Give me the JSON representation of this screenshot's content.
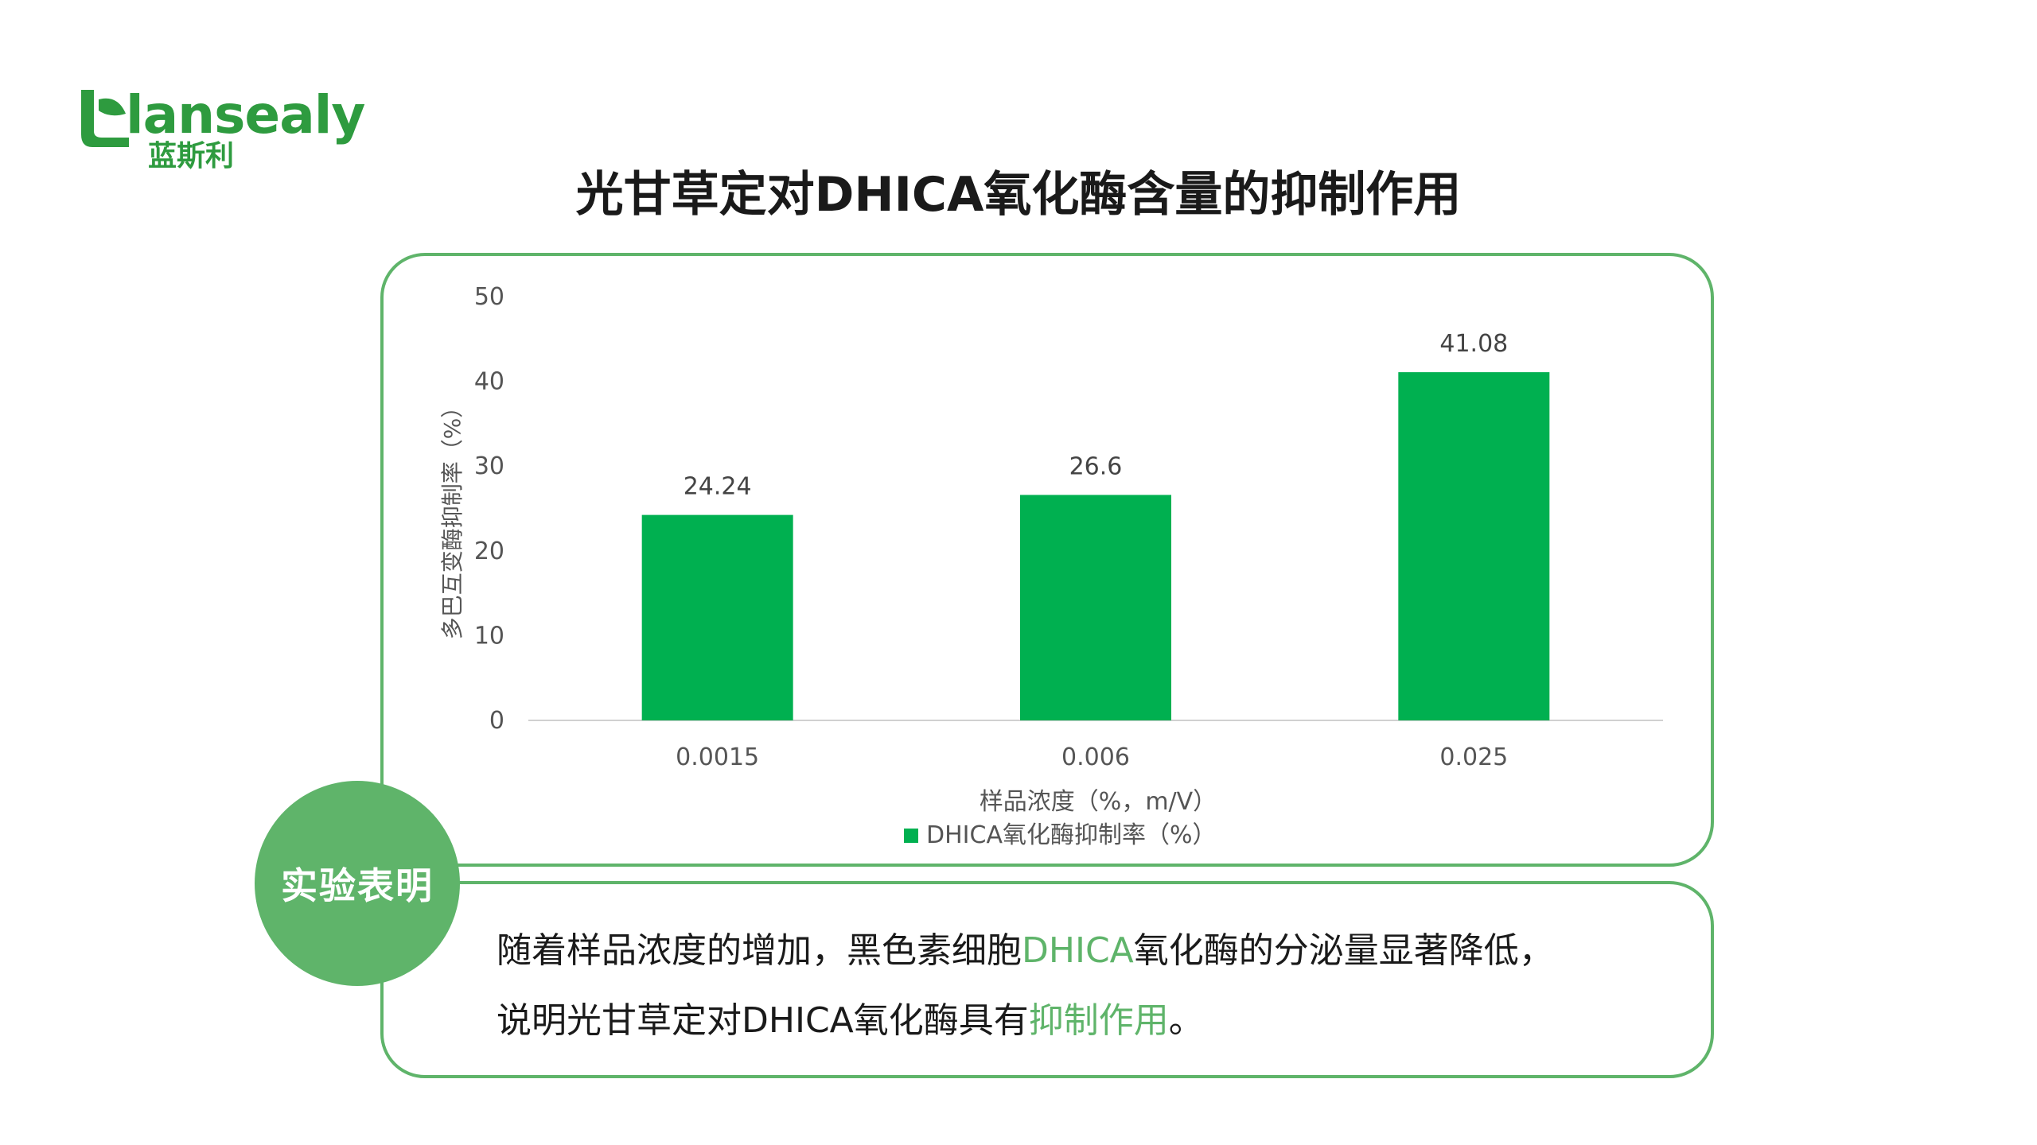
{
  "logo": {
    "brand": "lansealy",
    "brand_cn": "蓝斯利"
  },
  "page_title": "光甘草定对DHICA氧化酶含量的抑制作用",
  "chart_data": {
    "type": "bar",
    "categories": [
      "0.0015",
      "0.006",
      "0.025"
    ],
    "series": [
      {
        "name": "DHICA氧化酶抑制率（%）",
        "values": [
          24.24,
          26.6,
          41.08
        ]
      }
    ],
    "data_labels": [
      "24.24",
      "26.6",
      "41.08"
    ],
    "xlabel": "样品浓度（%，m/V）",
    "ylabel": "多巴互变酶抑制率（%）",
    "ylim": [
      0,
      50
    ],
    "yticks": [
      "0",
      "10",
      "20",
      "30",
      "40",
      "50"
    ],
    "legend_position": "bottom",
    "grid": false,
    "bar_color": "#00b050"
  },
  "conclusion": {
    "badge": "实验表明",
    "line1_a": "随着样品浓度的增加，黑色素细胞",
    "line1_hl": "DHICA",
    "line1_b": "氧化酶的分泌量显著降低，",
    "line2_a": "说明光甘草定对DHICA氧化酶具有",
    "line2_hl": "抑制作用",
    "line2_b": "。"
  },
  "colors": {
    "accent": "#5fb46a",
    "bar": "#00b050",
    "logo": "#2e9b3f"
  }
}
